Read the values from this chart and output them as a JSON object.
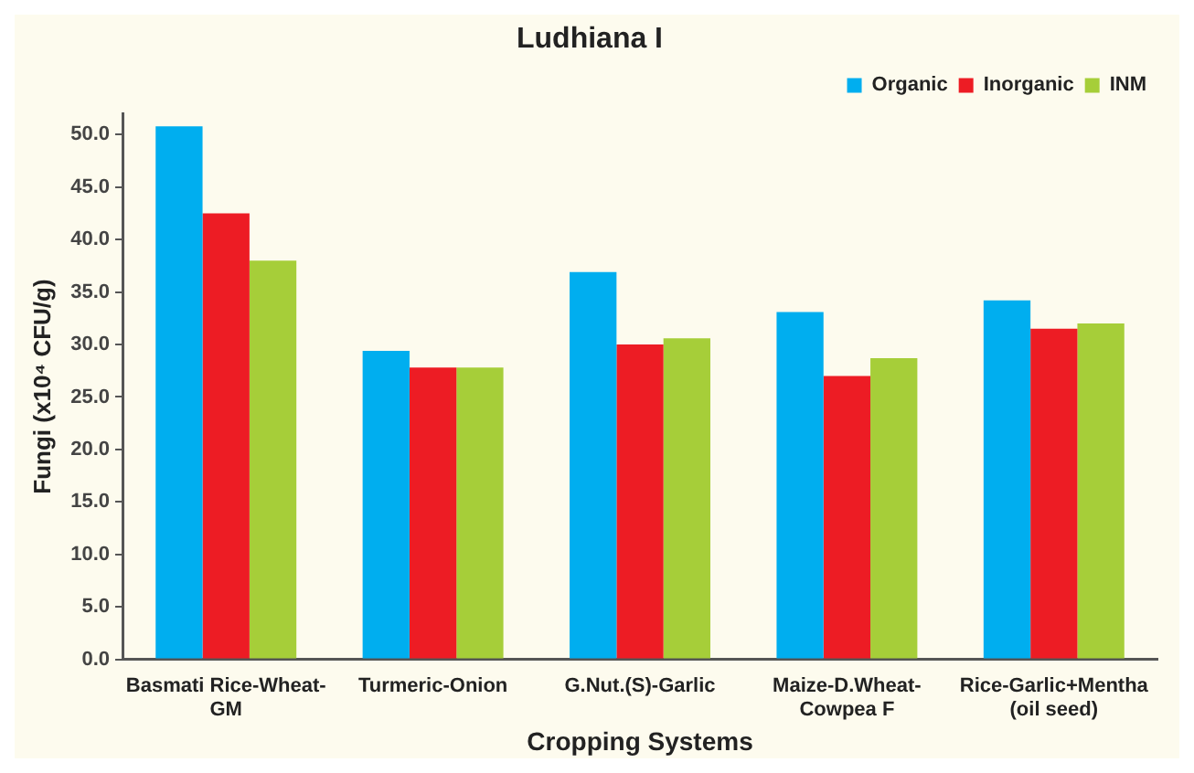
{
  "chart_data": {
    "type": "bar",
    "title": "Ludhiana I",
    "xlabel": "Cropping Systems",
    "ylabel": "Fungi (x10⁴ CFU/g)",
    "categories": [
      "Basmati Rice-Wheat-GM",
      "Turmeric-Onion",
      "G.Nut.(S)-Garlic",
      "Maize-D.Wheat-Cowpea F",
      "Rice-Garlic+Mentha (oil seed)"
    ],
    "series": [
      {
        "name": "Organic",
        "color": "#00aeef",
        "values": [
          50.8,
          29.4,
          36.9,
          33.1,
          34.2
        ]
      },
      {
        "name": "Inorganic",
        "color": "#ed1c24",
        "values": [
          42.5,
          27.8,
          30.0,
          27.0,
          31.5
        ]
      },
      {
        "name": "INM",
        "color": "#a6ce39",
        "values": [
          38.0,
          27.8,
          30.6,
          28.7,
          32.0
        ]
      }
    ],
    "ylim": [
      0,
      52
    ],
    "yticks": [
      {
        "value": 0,
        "label": "0.0"
      },
      {
        "value": 5,
        "label": "5.0"
      },
      {
        "value": 10,
        "label": "10.0"
      },
      {
        "value": 15,
        "label": "15.0"
      },
      {
        "value": 20,
        "label": "20.0"
      },
      {
        "value": 25,
        "label": "25.0"
      },
      {
        "value": 30,
        "label": "30.0"
      },
      {
        "value": 35,
        "label": "35.0"
      },
      {
        "value": 40,
        "label": "40.0"
      },
      {
        "value": 45,
        "label": "45.0"
      },
      {
        "value": 50,
        "label": "50.0"
      }
    ],
    "grid": false,
    "legend": "top right"
  }
}
